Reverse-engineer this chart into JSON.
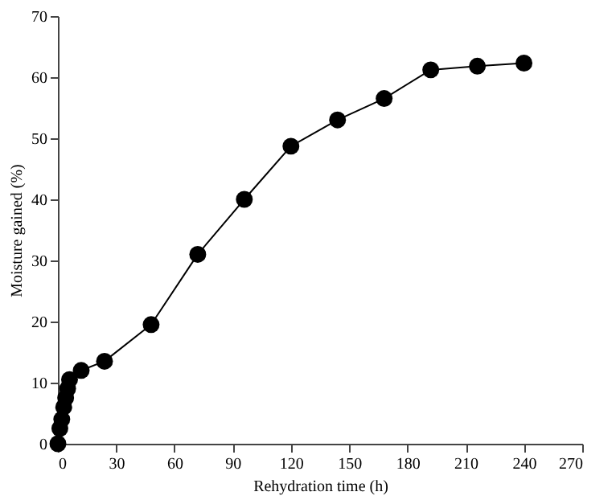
{
  "chart_data": {
    "type": "line",
    "xlabel": "Rehydration time (h)",
    "ylabel": "Moisture gained (%)",
    "x": [
      0,
      1,
      2,
      3,
      4,
      5,
      6,
      12,
      24,
      48,
      72,
      96,
      120,
      144,
      168,
      192,
      216,
      240
    ],
    "series": [
      {
        "color": "#000000",
        "values": [
          0,
          2.5,
          4,
          6,
          7.5,
          9,
          10.5,
          12,
          13.5,
          19.5,
          31,
          40,
          48.7,
          53,
          56.5,
          61.2,
          61.8,
          62.3
        ]
      }
    ],
    "marker": "circle",
    "line_style": "solid",
    "grid": false,
    "xlim": [
      0,
      270
    ],
    "xticks": [
      0,
      30,
      60,
      90,
      120,
      150,
      180,
      210,
      240,
      270
    ],
    "ylim": [
      0,
      70
    ],
    "yticks": [
      0,
      10,
      20,
      30,
      40,
      50,
      60,
      70
    ]
  }
}
